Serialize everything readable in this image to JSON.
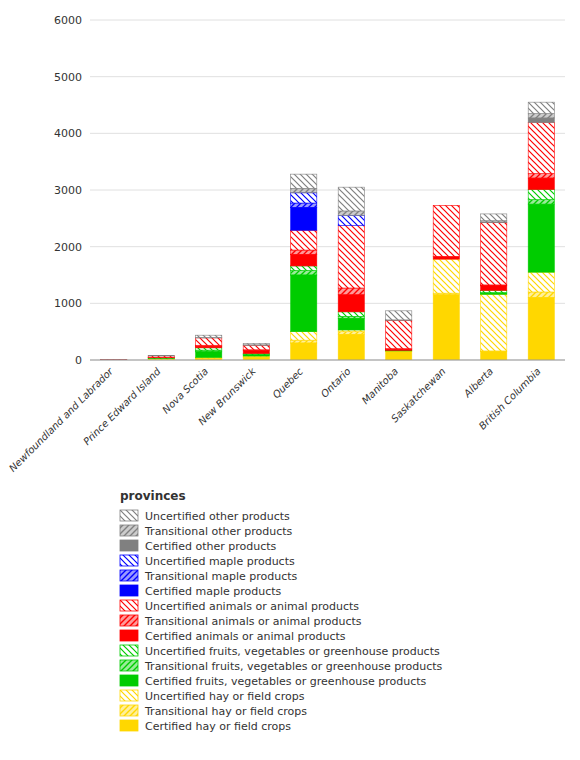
{
  "chart_data": {
    "type": "bar",
    "stacked": true,
    "grid": true,
    "legend_title": "provinces",
    "categories": [
      "Newfoundland and Labrador",
      "Prince Edward Island",
      "Nova Scotia",
      "New Brunswick",
      "Quebec",
      "Ontario",
      "Manitoba",
      "Saskatchewan",
      "Alberta",
      "British Columbia"
    ],
    "ylim": [
      0,
      6000
    ],
    "yticks": [
      0,
      1000,
      2000,
      3000,
      4000,
      5000,
      6000
    ],
    "series": [
      {
        "name": "Certified hay or field crops",
        "color": "#FFD700",
        "values": [
          0,
          5,
          20,
          50,
          300,
          450,
          150,
          1150,
          150,
          1100
        ]
      },
      {
        "name": "Transitional hay or field crops",
        "color": "#FFD700",
        "values": [
          0,
          3,
          10,
          5,
          50,
          50,
          10,
          30,
          10,
          100
        ]
      },
      {
        "name": "Uncertified hay or field crops",
        "color": "#FFD700",
        "values": [
          5,
          15,
          15,
          15,
          150,
          30,
          0,
          600,
          1000,
          350
        ]
      },
      {
        "name": "Certified fruits, vegetables or greenhouse products",
        "color": "#00CC00",
        "values": [
          0,
          5,
          100,
          20,
          1000,
          200,
          0,
          0,
          20,
          1200
        ]
      },
      {
        "name": "Transitional fruits, vegetables or greenhouse products",
        "color": "#00CC00",
        "values": [
          0,
          3,
          30,
          10,
          80,
          40,
          0,
          0,
          10,
          80
        ]
      },
      {
        "name": "Uncertified fruits, vegetables or greenhouse products",
        "color": "#00CC00",
        "values": [
          0,
          8,
          40,
          15,
          80,
          80,
          10,
          0,
          40,
          180
        ]
      },
      {
        "name": "Certified animals or animal products",
        "color": "#FF0000",
        "values": [
          0,
          5,
          25,
          50,
          200,
          300,
          15,
          50,
          80,
          200
        ]
      },
      {
        "name": "Transitional animals or animal products",
        "color": "#FF0000",
        "values": [
          0,
          3,
          20,
          15,
          80,
          120,
          15,
          0,
          15,
          80
        ]
      },
      {
        "name": "Uncertified animals or animal products",
        "color": "#FF0000",
        "values": [
          3,
          25,
          130,
          80,
          350,
          1100,
          500,
          900,
          1100,
          900
        ]
      },
      {
        "name": "Certified maple products",
        "color": "#0000FF",
        "values": [
          0,
          0,
          0,
          0,
          400,
          0,
          0,
          0,
          0,
          0
        ]
      },
      {
        "name": "Transitional maple products",
        "color": "#0000FF",
        "values": [
          0,
          0,
          0,
          0,
          80,
          0,
          0,
          0,
          0,
          0
        ]
      },
      {
        "name": "Uncertified maple products",
        "color": "#0000FF",
        "values": [
          0,
          0,
          0,
          0,
          180,
          180,
          0,
          0,
          0,
          0
        ]
      },
      {
        "name": "Certified other products",
        "color": "#808080",
        "values": [
          0,
          0,
          0,
          0,
          0,
          0,
          0,
          0,
          8,
          80
        ]
      },
      {
        "name": "Transitional other products",
        "color": "#808080",
        "values": [
          0,
          0,
          8,
          8,
          80,
          80,
          8,
          0,
          25,
          80
        ]
      },
      {
        "name": "Uncertified other products",
        "color": "#808080",
        "values": [
          3,
          8,
          40,
          25,
          250,
          420,
          160,
          0,
          120,
          200
        ]
      }
    ]
  }
}
